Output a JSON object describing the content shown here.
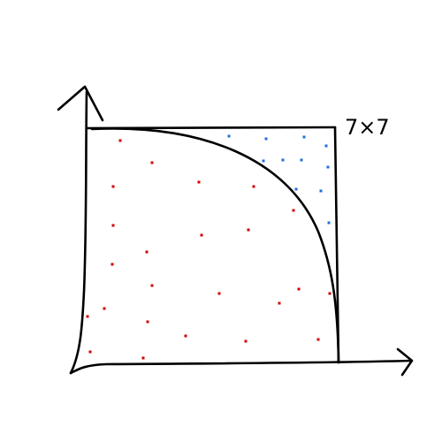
{
  "labels": {
    "square_size": "7×7"
  },
  "colors": {
    "ink": "#000000",
    "inside_point": "#d20000",
    "outside_point": "#1f6fd8",
    "background": "#ffffff"
  }
}
